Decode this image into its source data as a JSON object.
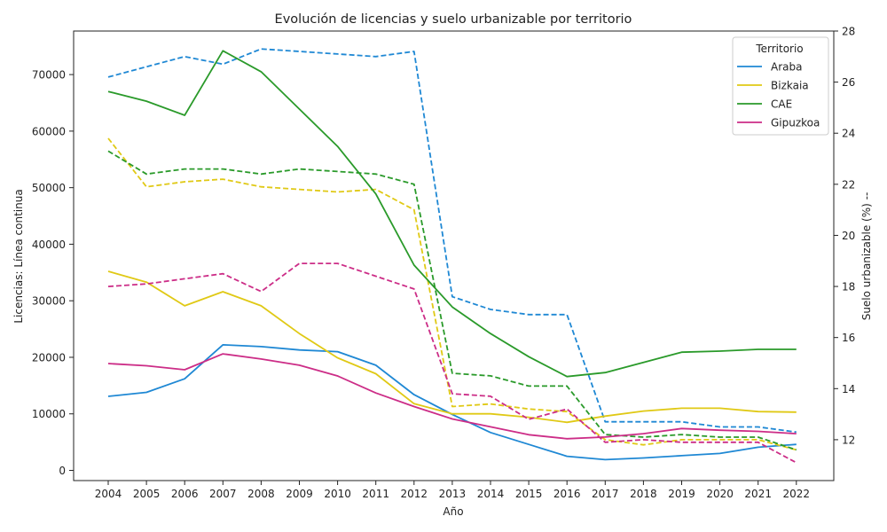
{
  "chart_data": {
    "type": "line",
    "title": "Evolución de licencias y suelo urbanizable por territorio",
    "xlabel": "Año",
    "ylabel": "Licencias: Línea continua",
    "ylabel_right": "Suelo urbanizable (%) --",
    "x": [
      2004,
      2005,
      2006,
      2007,
      2008,
      2009,
      2010,
      2011,
      2012,
      2013,
      2014,
      2015,
      2016,
      2017,
      2018,
      2019,
      2020,
      2021,
      2022
    ],
    "ylim": [
      -1800,
      77700
    ],
    "ylim_right": [
      10.4,
      28.0
    ],
    "yticks": [
      0,
      10000,
      20000,
      30000,
      40000,
      50000,
      60000,
      70000
    ],
    "yticks_right": [
      12,
      14,
      16,
      18,
      20,
      22,
      24,
      26,
      28
    ],
    "grid": false,
    "legend": {
      "title": "Territorio",
      "placement": "top-right",
      "entries": [
        "Araba",
        "Bizkaia",
        "CAE",
        "Gipuzkoa"
      ]
    },
    "series": [
      {
        "name": "Araba",
        "color": "#1f88d4",
        "licencias": [
          13100,
          13800,
          16200,
          22200,
          21900,
          21300,
          21000,
          18600,
          13400,
          9900,
          6700,
          4600,
          2500,
          1900,
          2200,
          2600,
          3000,
          4100,
          4600
        ],
        "suelo": [
          26.2,
          26.6,
          27.0,
          26.7,
          27.3,
          27.2,
          27.1,
          27.0,
          27.2,
          17.6,
          17.1,
          16.9,
          16.9,
          12.7,
          12.7,
          12.7,
          12.5,
          12.5,
          12.3
        ]
      },
      {
        "name": "Bizkaia",
        "color": "#e0c915",
        "licencias": [
          35200,
          33300,
          29100,
          31600,
          29100,
          24200,
          19900,
          17100,
          11800,
          10000,
          10000,
          9400,
          8500,
          9600,
          10500,
          11000,
          11000,
          10400,
          10300
        ],
        "suelo": [
          23.8,
          21.9,
          22.1,
          22.2,
          21.9,
          21.8,
          21.7,
          21.8,
          21.0,
          13.3,
          13.4,
          13.2,
          13.1,
          12.0,
          11.8,
          12.0,
          12.0,
          12.0,
          11.6
        ]
      },
      {
        "name": "CAE",
        "color": "#2a9a2a",
        "licencias": [
          67000,
          65300,
          62800,
          74200,
          70500,
          63900,
          57300,
          48900,
          36300,
          28900,
          24200,
          20100,
          16600,
          17300,
          19100,
          20900,
          21100,
          21400,
          21400
        ],
        "suelo": [
          23.3,
          22.4,
          22.6,
          22.6,
          22.4,
          22.6,
          22.5,
          22.4,
          22.0,
          14.6,
          14.5,
          14.1,
          14.1,
          12.2,
          12.1,
          12.2,
          12.1,
          12.1,
          11.6
        ]
      },
      {
        "name": "Gipuzkoa",
        "color": "#cc2d87",
        "licencias": [
          18900,
          18500,
          17800,
          20600,
          19700,
          18600,
          16700,
          13700,
          11300,
          9100,
          7700,
          6300,
          5600,
          5900,
          6500,
          7400,
          7100,
          6900,
          6500
        ],
        "suelo": [
          18.0,
          18.1,
          18.3,
          18.5,
          17.8,
          18.9,
          18.9,
          18.4,
          17.9,
          13.8,
          13.7,
          12.8,
          13.2,
          11.9,
          12.0,
          11.9,
          11.9,
          11.9,
          11.1
        ]
      }
    ]
  }
}
